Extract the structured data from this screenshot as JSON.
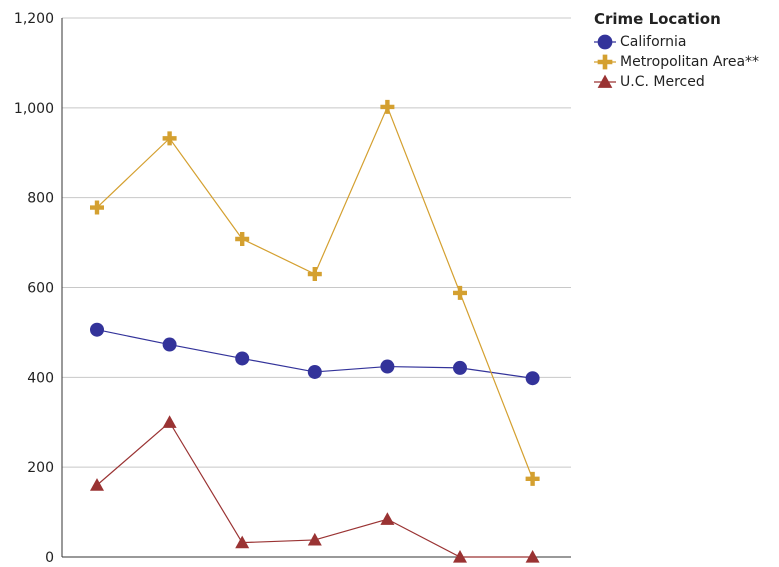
{
  "chart_data": {
    "type": "line",
    "x": [
      1,
      2,
      3,
      4,
      5,
      6,
      7
    ],
    "ylim": [
      0,
      1200
    ],
    "yticks": [
      0,
      200,
      400,
      600,
      800,
      1000,
      1200
    ],
    "ytick_labels": [
      "0",
      "200",
      "400",
      "600",
      "800",
      "1,000",
      "1,200"
    ],
    "grid": true,
    "legend": {
      "title": "Crime Location",
      "placement": "top-right"
    },
    "series": [
      {
        "name": "California",
        "color": "#33339a",
        "marker": "circle",
        "values": [
          506,
          473,
          442,
          412,
          424,
          421,
          398
        ]
      },
      {
        "name": "Metropolitan Area**",
        "color": "#d4a030",
        "marker": "plus",
        "values": [
          778,
          932,
          708,
          630,
          1002,
          588,
          174
        ]
      },
      {
        "name": "U.C. Merced",
        "color": "#9a3333",
        "marker": "triangle",
        "values": [
          160,
          300,
          32,
          38,
          84,
          0,
          0
        ]
      }
    ]
  }
}
